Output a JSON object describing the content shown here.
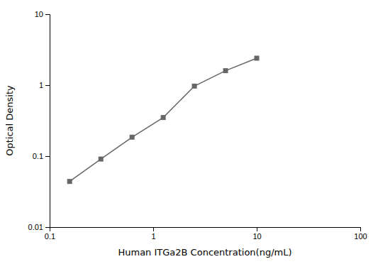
{
  "chart_data": {
    "type": "line",
    "x": [
      0.156,
      0.3125,
      0.625,
      1.25,
      2.5,
      5.0,
      10.0
    ],
    "values": [
      0.044,
      0.091,
      0.185,
      0.35,
      0.97,
      1.6,
      2.4
    ],
    "xlabel": "Human ITGa2B Concentration(ng/mL)",
    "ylabel": "Optical Density",
    "xlim": [
      0.1,
      100
    ],
    "ylim": [
      0.01,
      10
    ],
    "xticks": [
      0.1,
      1,
      10,
      100
    ],
    "yticks": [
      0.01,
      0.1,
      1,
      10
    ],
    "log": true,
    "grid": false,
    "color": "#666666",
    "marker": "square"
  }
}
